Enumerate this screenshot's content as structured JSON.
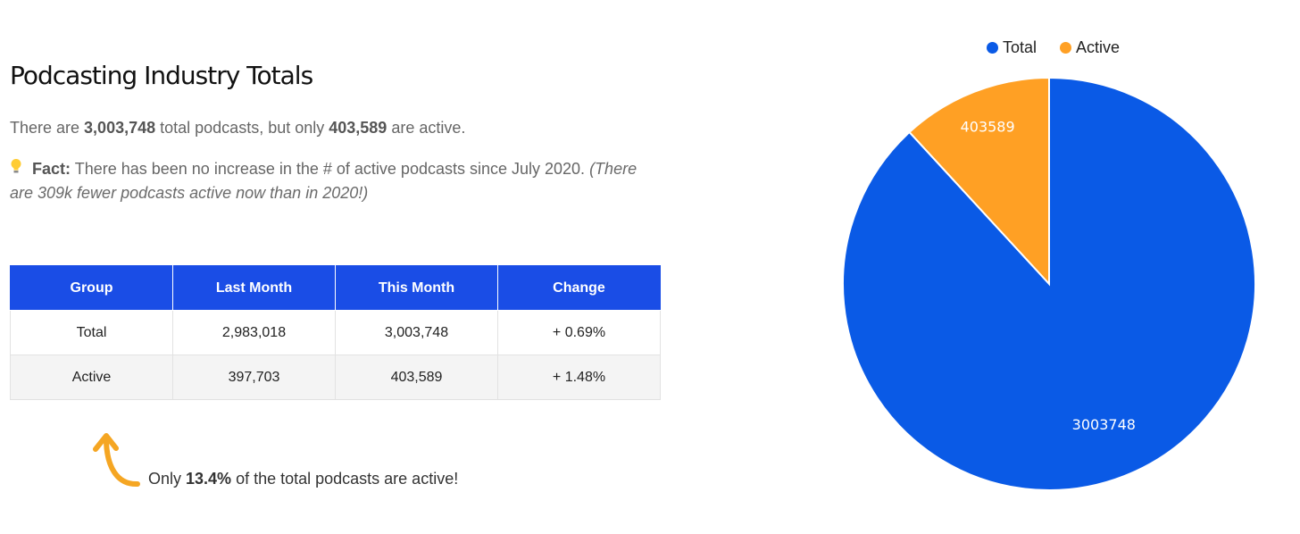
{
  "heading": "Podcasting Industry Totals",
  "summary": {
    "prefix": "There are ",
    "total": "3,003,748",
    "middle": " total podcasts, but only ",
    "active": "403,589",
    "suffix": " are active."
  },
  "fact": {
    "icon": "lightbulb-icon",
    "label": "Fact:",
    "text": " There has been no increase in the # of active podcasts since July 2020. ",
    "italic": "(There are 309k fewer podcasts active now than in 2020!)"
  },
  "table": {
    "headers": [
      "Group",
      "Last Month",
      "This Month",
      "Change"
    ],
    "rows": [
      [
        "Total",
        "2,983,018",
        "3,003,748",
        "+ 0.69%"
      ],
      [
        "Active",
        "397,703",
        "403,589",
        "+ 1.48%"
      ]
    ]
  },
  "note": {
    "icon": "curved-arrow-up-icon",
    "prefix": "Only ",
    "bold": "13.4%",
    "suffix": " of the total podcasts are active!"
  },
  "colors": {
    "header_bg": "#1a4de6",
    "total": "#0a5ae6",
    "active": "#ffa024",
    "arrow": "#f5a623"
  },
  "chart_data": {
    "type": "pie",
    "title": "",
    "legend": "top",
    "series": [
      {
        "name": "Total",
        "value": 3003748,
        "label": "3003748",
        "color": "#0a5ae6"
      },
      {
        "name": "Active",
        "value": 403589,
        "label": "403589",
        "color": "#ffa024"
      }
    ]
  }
}
